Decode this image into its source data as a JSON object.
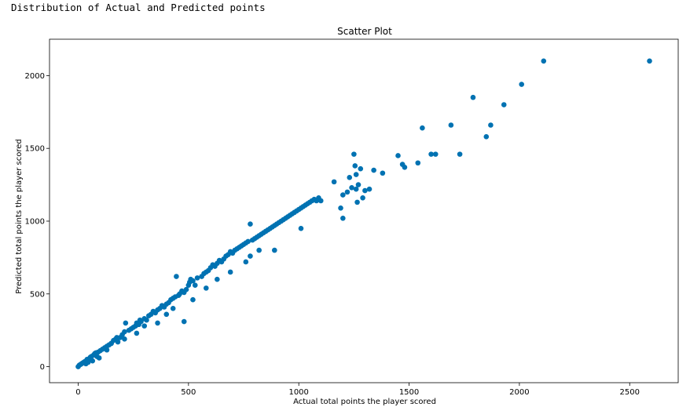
{
  "output_text": "Distribution of Actual and Predicted points",
  "chart_data": {
    "type": "scatter",
    "title": "Scatter Plot",
    "xlabel": "Actual total points the player scored",
    "ylabel": "Predicted total points the player scored",
    "xlim": [
      -130,
      2720
    ],
    "ylim": [
      -110,
      2250
    ],
    "xticks": [
      0,
      500,
      1000,
      1500,
      2000,
      2500
    ],
    "yticks": [
      0,
      500,
      1000,
      1500,
      2000
    ],
    "marker_color": "#0072b2",
    "grid": false,
    "x": [
      0,
      5,
      10,
      15,
      20,
      25,
      30,
      40,
      50,
      55,
      60,
      70,
      75,
      80,
      90,
      100,
      110,
      120,
      130,
      140,
      150,
      160,
      170,
      175,
      180,
      190,
      200,
      210,
      215,
      230,
      240,
      250,
      260,
      265,
      275,
      280,
      285,
      300,
      310,
      320,
      330,
      340,
      350,
      360,
      370,
      380,
      390,
      400,
      410,
      420,
      430,
      440,
      445,
      455,
      460,
      470,
      480,
      490,
      500,
      505,
      510,
      520,
      530,
      540,
      560,
      570,
      580,
      590,
      600,
      610,
      620,
      630,
      640,
      650,
      660,
      670,
      680,
      690,
      700,
      710,
      720,
      730,
      740,
      750,
      760,
      770,
      780,
      790,
      800,
      810,
      820,
      830,
      840,
      850,
      860,
      870,
      880,
      890,
      900,
      910,
      920,
      930,
      940,
      950,
      960,
      970,
      980,
      990,
      1000,
      1010,
      1020,
      1030,
      1040,
      1050,
      1060,
      1070,
      1080,
      1090,
      1100,
      1160,
      1190,
      1200,
      1220,
      1230,
      1240,
      1250,
      1255,
      1260,
      1265,
      1270,
      1280,
      1290,
      1320,
      1340,
      1380,
      1450,
      1470,
      1480,
      1540,
      1560,
      1600,
      1620,
      1690,
      1730,
      1790,
      1850,
      1870,
      1930,
      2010,
      2110,
      2590,
      480,
      780,
      520,
      265,
      360,
      150,
      95,
      35,
      65,
      300,
      400,
      630,
      760,
      890,
      1010,
      1260,
      1300,
      1200,
      820,
      690,
      580,
      430,
      210,
      130,
      85,
      45
    ],
    "y": [
      0,
      10,
      15,
      20,
      25,
      30,
      35,
      50,
      55,
      65,
      70,
      80,
      90,
      95,
      100,
      110,
      120,
      130,
      140,
      150,
      160,
      180,
      190,
      200,
      170,
      200,
      220,
      240,
      300,
      250,
      260,
      270,
      280,
      300,
      290,
      320,
      310,
      330,
      320,
      350,
      360,
      380,
      370,
      390,
      400,
      420,
      410,
      430,
      440,
      460,
      470,
      480,
      620,
      490,
      500,
      520,
      510,
      530,
      560,
      580,
      600,
      590,
      560,
      610,
      620,
      640,
      650,
      660,
      680,
      700,
      690,
      710,
      730,
      720,
      740,
      760,
      770,
      790,
      780,
      800,
      810,
      820,
      830,
      840,
      850,
      860,
      980,
      870,
      880,
      890,
      900,
      910,
      920,
      930,
      940,
      950,
      960,
      970,
      980,
      990,
      1000,
      1010,
      1020,
      1030,
      1040,
      1050,
      1060,
      1070,
      1080,
      1090,
      1100,
      1110,
      1120,
      1130,
      1140,
      1150,
      1140,
      1160,
      1140,
      1270,
      1090,
      1020,
      1200,
      1300,
      1230,
      1460,
      1380,
      1320,
      1130,
      1250,
      1360,
      1160,
      1220,
      1350,
      1330,
      1450,
      1390,
      1370,
      1400,
      1640,
      1460,
      1460,
      1660,
      1460,
      1850,
      1580,
      1660,
      1800,
      1940,
      2100,
      2100,
      310,
      760,
      460,
      230,
      300,
      160,
      60,
      20,
      40,
      280,
      360,
      600,
      720,
      800,
      950,
      1220,
      1210,
      1180,
      800,
      650,
      540,
      400,
      190,
      115,
      70,
      30
    ]
  }
}
